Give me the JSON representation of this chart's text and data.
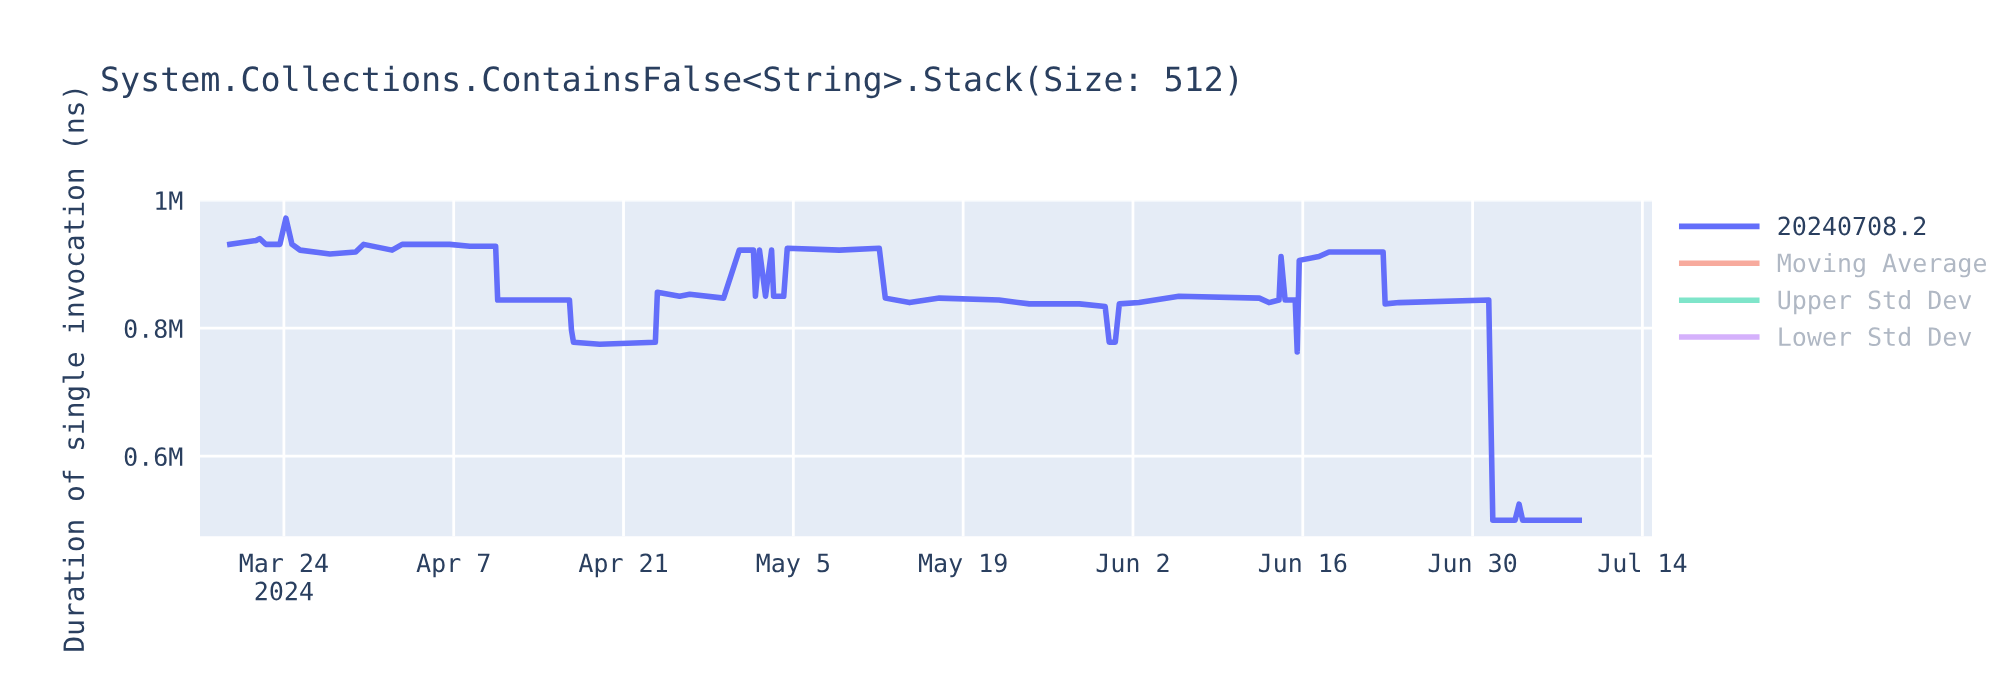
{
  "chart_data": {
    "type": "line",
    "title": "System.Collections.ContainsFalse<String>.Stack(Size: 512)",
    "ylabel": "Duration of single invocation (ns)",
    "x": [
      "2024-03-19T13:00",
      "2024-03-21T17:00",
      "2024-03-22T00:00",
      "2024-03-22T12:00",
      "2024-03-23T16:00",
      "2024-03-24T04:00",
      "2024-03-24T16:00",
      "2024-03-25T08:00",
      "2024-03-27T19:00",
      "2024-03-29T22:00",
      "2024-03-30T14:00",
      "2024-04-01T22:00",
      "2024-04-02T18:00",
      "2024-04-06T16:00",
      "2024-04-08T08:00",
      "2024-04-10T11:00",
      "2024-04-10T15:00",
      "2024-04-16T13:00",
      "2024-04-16T17:00",
      "2024-04-16T21:00",
      "2024-04-19T01:00",
      "2024-04-23T15:00",
      "2024-04-23T19:00",
      "2024-04-25T15:00",
      "2024-04-26T11:00",
      "2024-04-29T06:00",
      "2024-04-30T13:00",
      "2024-05-01T17:00",
      "2024-05-01T21:00",
      "2024-05-02T05:00",
      "2024-05-02T17:00",
      "2024-05-03T05:00",
      "2024-05-03T09:00",
      "2024-05-04T05:00",
      "2024-05-04T12:00",
      "2024-05-08T19:00",
      "2024-05-12T02:00",
      "2024-05-12T14:00",
      "2024-05-14T14:00",
      "2024-05-17T01:00",
      "2024-05-21T23:00",
      "2024-05-24T11:00",
      "2024-05-28T14:00",
      "2024-05-30T17:00",
      "2024-05-31T01:00",
      "2024-05-31T13:00",
      "2024-05-31T21:00",
      "2024-06-02T12:00",
      "2024-06-05T19:00",
      "2024-06-12T10:00",
      "2024-06-13T05:00",
      "2024-06-14T01:00",
      "2024-06-14T05:00",
      "2024-06-14T13:00",
      "2024-06-15T09:00",
      "2024-06-15T13:00",
      "2024-06-15T17:00",
      "2024-06-17T08:00",
      "2024-06-18T04:00",
      "2024-06-22T15:00",
      "2024-06-22T19:00",
      "2024-06-23T23:00",
      "2024-07-01T08:00",
      "2024-07-01T16:00",
      "2024-07-03T12:00",
      "2024-07-03T20:00",
      "2024-07-04T03:00",
      "2024-07-08T19:00"
    ],
    "series": [
      {
        "name": "20240708.2",
        "color": "#636efa",
        "values": [
          931000,
          937000,
          940000,
          931000,
          931000,
          972000,
          931000,
          922000,
          916000,
          919000,
          931000,
          922000,
          931000,
          931000,
          928000,
          928000,
          844000,
          844000,
          797000,
          778000,
          775000,
          778000,
          856000,
          850000,
          853000,
          847000,
          922000,
          922000,
          850000,
          922000,
          850000,
          922000,
          850000,
          850000,
          925000,
          922000,
          925000,
          847000,
          840000,
          847000,
          844000,
          838000,
          838000,
          834000,
          778000,
          778000,
          838000,
          840000,
          850000,
          847000,
          840000,
          844000,
          912000,
          844000,
          844000,
          763000,
          906000,
          912000,
          919000,
          919000,
          838000,
          840000,
          844000,
          500000,
          500000,
          525000,
          500000,
          500000
        ]
      },
      {
        "name": "Moving Average",
        "color": "#ef553b",
        "values": [
          null,
          null,
          null,
          null,
          null,
          null,
          null,
          null,
          null,
          null,
          null,
          null,
          null,
          null,
          null,
          null,
          null,
          null,
          null,
          null,
          null,
          null,
          null,
          null,
          null,
          null,
          null,
          null,
          null,
          null,
          null,
          null,
          null,
          null,
          null,
          null,
          null,
          null,
          null,
          null,
          null,
          null,
          null,
          null,
          null,
          null,
          null,
          null,
          null,
          null,
          null,
          null,
          null,
          null,
          null,
          null,
          null,
          null,
          null,
          null,
          null,
          null,
          null,
          null,
          null,
          null,
          null,
          null
        ]
      },
      {
        "name": "Upper Std Dev",
        "color": "#00cc96",
        "values": [
          null,
          null,
          null,
          null,
          null,
          null,
          null,
          null,
          null,
          null,
          null,
          null,
          null,
          null,
          null,
          null,
          null,
          null,
          null,
          null,
          null,
          null,
          null,
          null,
          null,
          null,
          null,
          null,
          null,
          null,
          null,
          null,
          null,
          null,
          null,
          null,
          null,
          null,
          null,
          null,
          null,
          null,
          null,
          null,
          null,
          null,
          null,
          null,
          null,
          null,
          null,
          null,
          null,
          null,
          null,
          null,
          null,
          null,
          null,
          null,
          null,
          null,
          null,
          null,
          null,
          null,
          null,
          null
        ]
      },
      {
        "name": "Lower Std Dev",
        "color": "#ab63fa",
        "values": [
          null,
          null,
          null,
          null,
          null,
          null,
          null,
          null,
          null,
          null,
          null,
          null,
          null,
          null,
          null,
          null,
          null,
          null,
          null,
          null,
          null,
          null,
          null,
          null,
          null,
          null,
          null,
          null,
          null,
          null,
          null,
          null,
          null,
          null,
          null,
          null,
          null,
          null,
          null,
          null,
          null,
          null,
          null,
          null,
          null,
          null,
          null,
          null,
          null,
          null,
          null,
          null,
          null,
          null,
          null,
          null,
          null,
          null,
          null,
          null,
          null,
          null,
          null,
          null,
          null,
          null,
          null,
          null
        ]
      }
    ],
    "xlim": [
      "2024-03-17T02:00",
      "2024-07-14T19:00"
    ],
    "xticks": [
      {
        "value": "2024-03-24",
        "label": "Mar 24\n2024"
      },
      {
        "value": "2024-04-07",
        "label": "Apr 7"
      },
      {
        "value": "2024-04-21",
        "label": "Apr 21"
      },
      {
        "value": "2024-05-05",
        "label": "May 5"
      },
      {
        "value": "2024-05-19",
        "label": "May 19"
      },
      {
        "value": "2024-06-02",
        "label": "Jun 2"
      },
      {
        "value": "2024-06-16",
        "label": "Jun 16"
      },
      {
        "value": "2024-06-30",
        "label": "Jun 30"
      },
      {
        "value": "2024-07-14",
        "label": "Jul 14"
      }
    ],
    "ylim": [
      475000,
      1000000
    ],
    "yticks": [
      {
        "value": 600000,
        "label": "0.6M"
      },
      {
        "value": 800000,
        "label": "0.8M"
      },
      {
        "value": 1000000,
        "label": "1M"
      }
    ],
    "grid": true,
    "legend": "top right",
    "marker": "none",
    "line_style": "solid"
  }
}
